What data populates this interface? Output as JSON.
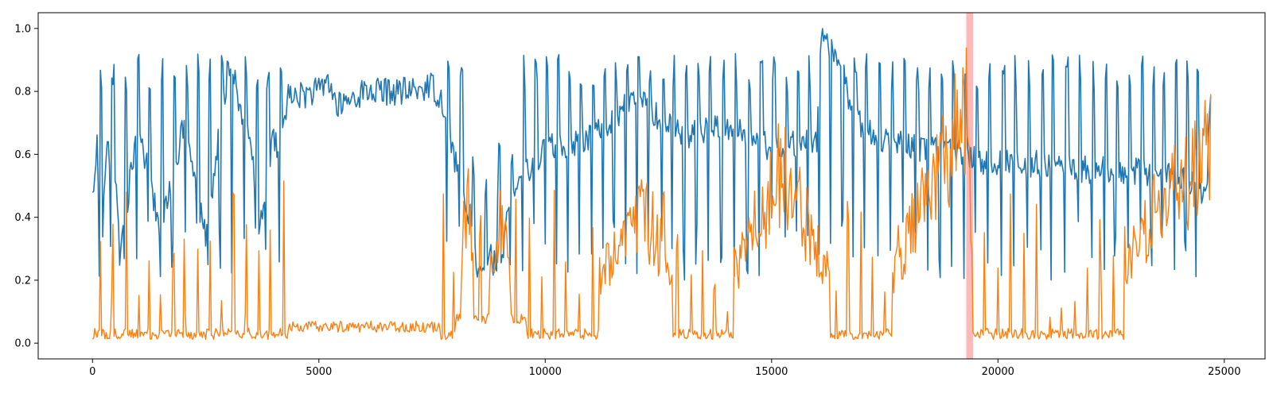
{
  "chart_data": {
    "type": "line",
    "title": "",
    "xlabel": "",
    "ylabel": "",
    "xlim": [
      -1200,
      25900
    ],
    "ylim": [
      -0.05,
      1.05
    ],
    "x_ticks": [
      0,
      5000,
      10000,
      15000,
      20000,
      25000
    ],
    "x_tick_labels": [
      "0",
      "5000",
      "10000",
      "15000",
      "20000",
      "25000"
    ],
    "y_ticks": [
      0.0,
      0.2,
      0.4,
      0.6,
      0.8,
      1.0
    ],
    "y_tick_labels": [
      "0.0",
      "0.2",
      "0.4",
      "0.6",
      "0.8",
      "1.0"
    ],
    "grid": false,
    "n_points": 24700,
    "highlight_region": {
      "x_start": 19300,
      "x_end": 19450,
      "color": "#ff8080"
    },
    "series": [
      {
        "color": "#1f77b4",
        "keypoints": [
          [
            0,
            0.47
          ],
          [
            100,
            0.64
          ],
          [
            200,
            0.24
          ],
          [
            300,
            0.62
          ],
          [
            500,
            0.55
          ],
          [
            600,
            0.27
          ],
          [
            1000,
            0.7
          ],
          [
            1500,
            0.36
          ],
          [
            2000,
            0.68
          ],
          [
            2500,
            0.34
          ],
          [
            3000,
            0.88
          ],
          [
            3500,
            0.62
          ],
          [
            3700,
            0.35
          ],
          [
            4000,
            0.68
          ],
          [
            4100,
            0.58
          ],
          [
            4300,
            0.78
          ],
          [
            5000,
            0.8
          ],
          [
            5200,
            0.84
          ],
          [
            5400,
            0.75
          ],
          [
            6000,
            0.8
          ],
          [
            6500,
            0.8
          ],
          [
            7000,
            0.8
          ],
          [
            7500,
            0.82
          ],
          [
            7800,
            0.75
          ],
          [
            8000,
            0.58
          ],
          [
            8300,
            0.47
          ],
          [
            8500,
            0.25
          ],
          [
            8800,
            0.28
          ],
          [
            9000,
            0.2
          ],
          [
            9200,
            0.45
          ],
          [
            9500,
            0.53
          ],
          [
            10000,
            0.62
          ],
          [
            11000,
            0.65
          ],
          [
            12000,
            0.78
          ],
          [
            13000,
            0.66
          ],
          [
            14000,
            0.69
          ],
          [
            15000,
            0.62
          ],
          [
            16000,
            0.65
          ],
          [
            16100,
            1.0
          ],
          [
            17000,
            0.68
          ],
          [
            18000,
            0.62
          ],
          [
            19000,
            0.61
          ],
          [
            19500,
            0.58
          ],
          [
            20000,
            0.57
          ],
          [
            21000,
            0.57
          ],
          [
            22000,
            0.55
          ],
          [
            23000,
            0.55
          ],
          [
            24000,
            0.53
          ],
          [
            24600,
            0.47
          ],
          [
            24700,
            0.78
          ]
        ],
        "spikes": {
          "description": "periodic sharp dips",
          "minimum_values_range": [
            0.2,
            0.4
          ],
          "maximum_values_range": [
            0.8,
            1.0
          ]
        }
      },
      {
        "color": "#ff7f0e",
        "keypoints": [
          [
            0,
            0.01
          ],
          [
            200,
            0.22
          ],
          [
            1000,
            0.02
          ],
          [
            2100,
            0.28
          ],
          [
            2600,
            0.22
          ],
          [
            3700,
            0.23
          ],
          [
            4000,
            0.02
          ],
          [
            5000,
            0.03
          ],
          [
            5400,
            0.15
          ],
          [
            6000,
            0.04
          ],
          [
            7000,
            0.04
          ],
          [
            7400,
            0.17
          ],
          [
            8000,
            0.02
          ],
          [
            8300,
            0.68
          ],
          [
            8500,
            0.07
          ],
          [
            9000,
            0.52
          ],
          [
            9500,
            0.06
          ],
          [
            10000,
            0.02
          ],
          [
            12200,
            0.54
          ],
          [
            13500,
            0.02
          ],
          [
            15200,
            0.74
          ],
          [
            17000,
            0.02
          ],
          [
            19300,
            1.0
          ],
          [
            19500,
            0.02
          ],
          [
            22000,
            0.02
          ],
          [
            23500,
            0.56
          ],
          [
            24700,
            0.8
          ]
        ],
        "spikes": {
          "description": "periodic sharp peaks",
          "peak_values_range": [
            0.1,
            0.6
          ]
        }
      }
    ]
  }
}
